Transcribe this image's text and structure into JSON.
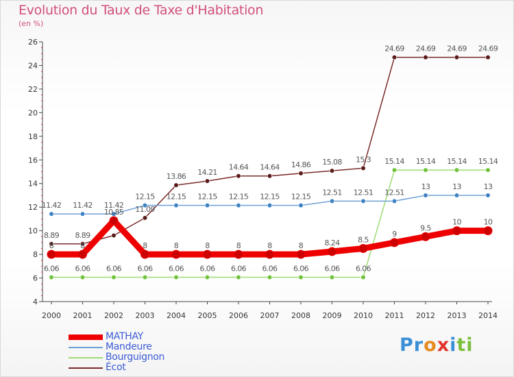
{
  "title": "Evolution du Taux de Taxe d'Habitation",
  "unit": "(en %)",
  "logo": {
    "letters": [
      {
        "ch": "P",
        "color": "#3a8fd6"
      },
      {
        "ch": "r",
        "color": "#3a8fd6"
      },
      {
        "ch": "o",
        "color": "#e58b20"
      },
      {
        "ch": "x",
        "color": "#e0342c"
      },
      {
        "ch": "i",
        "color": "#3a8fd6"
      },
      {
        "ch": "t",
        "color": "#7bbf3c"
      },
      {
        "ch": "i",
        "color": "#7bbf3c"
      }
    ]
  },
  "chart_data": {
    "type": "line",
    "title": "Evolution du Taux de Taxe d'Habitation",
    "ylabel": "(en %)",
    "x": [
      "2000",
      "2001",
      "2002",
      "2003",
      "2004",
      "2005",
      "2006",
      "2007",
      "2008",
      "2009",
      "2010",
      "2011",
      "2012",
      "2013",
      "2014"
    ],
    "ylim": [
      4,
      26
    ],
    "yticks": [
      "4",
      "6",
      "8",
      "10",
      "12",
      "14",
      "16",
      "18",
      "20",
      "22",
      "24",
      "26"
    ],
    "grid": false,
    "legend_position": "bottom-left",
    "series": [
      {
        "name": "MATHAY",
        "color": "#ee0000",
        "dot": "#cc0000",
        "width": 9,
        "values": [
          8,
          8,
          10.85,
          8,
          8,
          8,
          8,
          8,
          8,
          8.24,
          8.5,
          9,
          9.5,
          10,
          10
        ],
        "labels": [
          "8",
          "8",
          "10.85",
          "8",
          "8",
          "8",
          "8",
          "8",
          "8",
          "8.24",
          "8.5",
          "9",
          "9.5",
          "10",
          "10"
        ]
      },
      {
        "name": "Mandeure",
        "color": "#6fa1d6",
        "dot": "#3d82c4",
        "width": 1.5,
        "values": [
          11.42,
          11.42,
          11.42,
          12.15,
          12.15,
          12.15,
          12.15,
          12.15,
          12.15,
          12.51,
          12.51,
          12.51,
          13,
          13,
          13
        ],
        "labels": [
          "11.42",
          "11.42",
          "11.42",
          "12.15",
          "12.15",
          "12.15",
          "12.15",
          "12.15",
          "12.15",
          "12.51",
          "12.51",
          "12.51",
          "13",
          "13",
          "13"
        ]
      },
      {
        "name": "Bourguignon",
        "color": "#9edc73",
        "dot": "#70c23a",
        "width": 1.5,
        "values": [
          6.06,
          6.06,
          6.06,
          6.06,
          6.06,
          6.06,
          6.06,
          6.06,
          6.06,
          6.06,
          6.06,
          15.14,
          15.14,
          15.14,
          15.14
        ],
        "labels": [
          "6.06",
          "6.06",
          "6.06",
          "6.06",
          "6.06",
          "6.06",
          "6.06",
          "6.06",
          "6.06",
          "6.06",
          "6.06",
          "15.14",
          "15.14",
          "15.14",
          "15.14"
        ]
      },
      {
        "name": "Écot",
        "color": "#7a2a2a",
        "dot": "#5a1a1a",
        "width": 1.5,
        "values": [
          8.89,
          8.89,
          9.6,
          11.09,
          13.86,
          14.21,
          14.64,
          14.64,
          14.86,
          15.08,
          15.3,
          24.69,
          24.69,
          24.69,
          24.69
        ],
        "labels": [
          "8.89",
          "8.89",
          "",
          "11.09",
          "13.86",
          "14.21",
          "14.64",
          "14.64",
          "14.86",
          "15.08",
          "15.3",
          "24.69",
          "24.69",
          "24.69",
          "24.69"
        ]
      }
    ]
  }
}
